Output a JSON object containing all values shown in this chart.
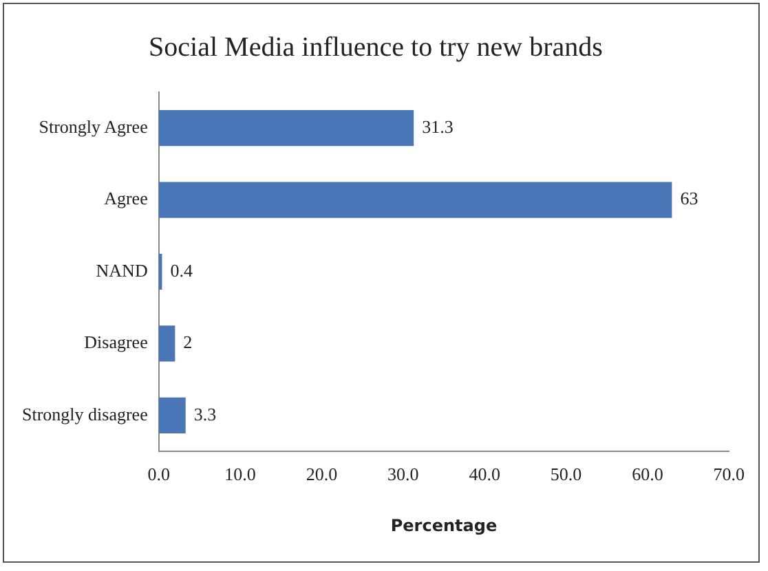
{
  "chart_data": {
    "type": "bar",
    "orientation": "horizontal",
    "title": "Social Media influence to try new brands",
    "xlabel": "Percentage",
    "categories": [
      "Strongly Agree",
      "Agree",
      "NAND",
      "Disagree",
      "Strongly disagree"
    ],
    "values": [
      31.3,
      63,
      0.4,
      2,
      3.3
    ],
    "color": "#4a76b8",
    "data_labels": true,
    "grid": false,
    "legend": false,
    "xlim": [
      0,
      70
    ],
    "xticks": [
      {
        "value": 0,
        "label": "0.0"
      },
      {
        "value": 10,
        "label": "10.0"
      },
      {
        "value": 20,
        "label": "20.0"
      },
      {
        "value": 30,
        "label": "30.0"
      },
      {
        "value": 40,
        "label": "40.0"
      },
      {
        "value": 50,
        "label": "50.0"
      },
      {
        "value": 60,
        "label": "60.0"
      },
      {
        "value": 70,
        "label": "70.0"
      }
    ]
  }
}
